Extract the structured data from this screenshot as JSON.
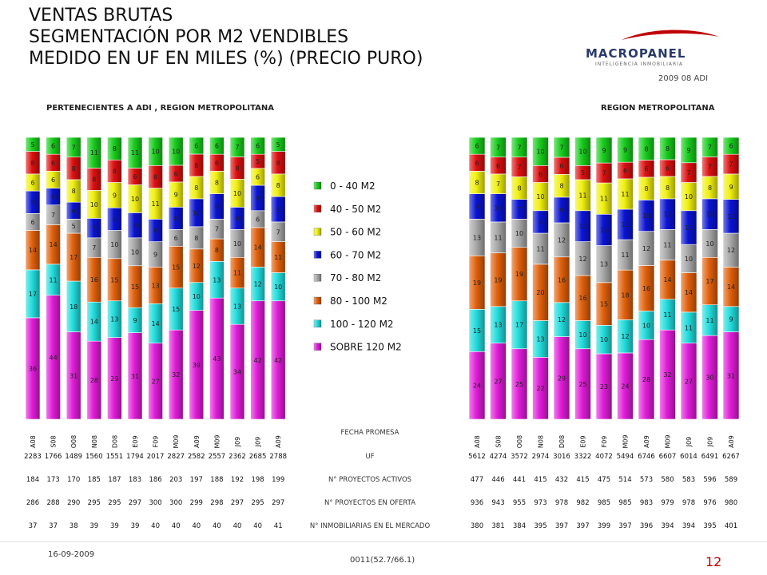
{
  "title": {
    "line1": "VENTAS BRUTAS",
    "line2": "SEGMENTACIÓN POR M2 VENDIBLES",
    "line3": "MEDIDO EN UF EN MILES (%) (PRECIO PURO)"
  },
  "logo": {
    "name": "MACROPANEL",
    "tagline": "INTELIGENCIA INMOBILIARIA",
    "edition": "2009 08 ADI"
  },
  "footer": {
    "date": "16-09-2009",
    "code": "0011(52.7/66.1)",
    "page": "12"
  },
  "row_labels": [
    "FECHA PROMESA",
    "UF",
    "N° PROYECTOS ACTIVOS",
    "N° PROYECTOS EN OFERTA",
    "N° INMOBILIARIAS EN EL MERCADO"
  ],
  "colors": [
    "#e01cd8",
    "#22dcdc",
    "#e0600c",
    "#a8a8a8",
    "#0a14d2",
    "#f0f010",
    "#dc1010",
    "#18cc1c"
  ],
  "chart_data": [
    {
      "type": "bar",
      "stacked": true,
      "percent": true,
      "title": "PERTENECIENTES A ADI , REGION METROPOLITANA",
      "categories": [
        "A08",
        "S08",
        "O08",
        "N08",
        "D08",
        "E09",
        "F09",
        "M09",
        "A09",
        "M09",
        "J09",
        "J09",
        "A09"
      ],
      "series": [
        {
          "name": "SOBRE 120 M2",
          "values": [
            36,
            44,
            31,
            28,
            29,
            31,
            27,
            32,
            39,
            43,
            34,
            42,
            42
          ]
        },
        {
          "name": "100 - 120 M2",
          "values": [
            17,
            11,
            18,
            14,
            13,
            9,
            14,
            15,
            10,
            13,
            13,
            12,
            10
          ]
        },
        {
          "name": "80 - 100 M2",
          "values": [
            14,
            14,
            17,
            16,
            15,
            15,
            13,
            15,
            12,
            8,
            11,
            14,
            11
          ]
        },
        {
          "name": "70 - 80 M2",
          "values": [
            6,
            7,
            5,
            7,
            10,
            10,
            9,
            6,
            8,
            7,
            10,
            6,
            7
          ]
        },
        {
          "name": "60 - 70 M2",
          "values": [
            8,
            6,
            6,
            7,
            8,
            9,
            8,
            8,
            10,
            9,
            8,
            9,
            9
          ]
        },
        {
          "name": "50 - 60 M2",
          "values": [
            6,
            6,
            8,
            10,
            9,
            10,
            11,
            9,
            8,
            8,
            10,
            6,
            8
          ]
        },
        {
          "name": "40 - 50 M2",
          "values": [
            8,
            6,
            8,
            8,
            8,
            6,
            8,
            6,
            8,
            6,
            8,
            5,
            8
          ]
        },
        {
          "name": "0 - 40 M2",
          "values": [
            5,
            6,
            7,
            11,
            8,
            11,
            10,
            10,
            6,
            6,
            7,
            6,
            5
          ]
        }
      ],
      "table": {
        "UF": [
          2283,
          1766,
          1489,
          1560,
          1551,
          1794,
          2017,
          2827,
          2582,
          2557,
          2362,
          2685,
          2788
        ],
        "N° PROYECTOS ACTIVOS": [
          184,
          173,
          170,
          185,
          187,
          183,
          186,
          203,
          197,
          188,
          192,
          198,
          199
        ],
        "N° PROYECTOS EN OFERTA": [
          286,
          288,
          290,
          295,
          295,
          297,
          300,
          300,
          299,
          298,
          297,
          295,
          297
        ],
        "N° INMOBILIARIAS EN EL MERCADO": [
          37,
          37,
          38,
          39,
          39,
          39,
          40,
          40,
          40,
          40,
          40,
          40,
          41
        ]
      },
      "ylim": [
        0,
        100
      ],
      "legend": "right"
    },
    {
      "type": "bar",
      "stacked": true,
      "percent": true,
      "title": "REGION METROPOLITANA",
      "categories": [
        "A08",
        "S08",
        "O08",
        "N08",
        "D08",
        "E09",
        "F09",
        "M09",
        "A09",
        "M09",
        "J09",
        "J09",
        "A09"
      ],
      "series": [
        {
          "name": "SOBRE 120 M2",
          "values": [
            24,
            27,
            25,
            22,
            29,
            25,
            23,
            24,
            28,
            32,
            27,
            30,
            31
          ]
        },
        {
          "name": "100 - 120 M2",
          "values": [
            15,
            13,
            17,
            13,
            12,
            10,
            10,
            12,
            10,
            11,
            11,
            11,
            9
          ]
        },
        {
          "name": "80 - 100 M2",
          "values": [
            19,
            19,
            19,
            20,
            16,
            16,
            15,
            18,
            16,
            14,
            14,
            17,
            14
          ]
        },
        {
          "name": "70 - 80 M2",
          "values": [
            13,
            11,
            10,
            11,
            12,
            12,
            13,
            11,
            12,
            11,
            10,
            10,
            12
          ]
        },
        {
          "name": "60 - 70 M2",
          "values": [
            9,
            10,
            7,
            8,
            9,
            11,
            11,
            11,
            11,
            11,
            12,
            11,
            12
          ]
        },
        {
          "name": "50 - 60 M2",
          "values": [
            8,
            7,
            8,
            10,
            8,
            11,
            11,
            11,
            8,
            8,
            10,
            8,
            9
          ]
        },
        {
          "name": "40 - 50 M2",
          "values": [
            6,
            6,
            7,
            6,
            6,
            5,
            7,
            6,
            6,
            6,
            7,
            7,
            7
          ]
        },
        {
          "name": "0 - 40 M2",
          "values": [
            6,
            7,
            7,
            10,
            7,
            10,
            9,
            9,
            8,
            8,
            9,
            7,
            6
          ]
        }
      ],
      "table": {
        "UF": [
          5612,
          4274,
          3572,
          2974,
          3016,
          3322,
          4072,
          5494,
          6746,
          6607,
          6014,
          6491,
          6267
        ],
        "N° PROYECTOS ACTIVOS": [
          477,
          446,
          441,
          415,
          432,
          415,
          475,
          514,
          573,
          580,
          583,
          596,
          589
        ],
        "N° PROYECTOS EN OFERTA": [
          936,
          943,
          955,
          973,
          978,
          982,
          985,
          985,
          983,
          979,
          978,
          976,
          980
        ],
        "N° INMOBILIARIAS EN EL MERCADO": [
          380,
          381,
          384,
          395,
          397,
          397,
          399,
          397,
          396,
          394,
          394,
          395,
          401
        ]
      },
      "ylim": [
        0,
        100
      ]
    }
  ]
}
